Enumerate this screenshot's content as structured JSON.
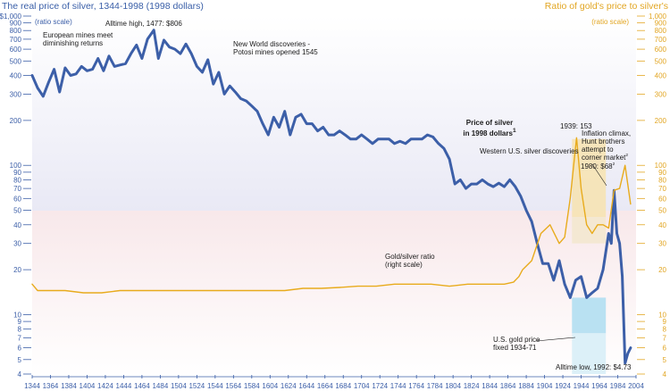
{
  "header": {
    "left_title": "The real price of silver, 1344-1998 (1998 dollars)",
    "right_title": "Ratio of gold's price to silver's"
  },
  "chart_data": {
    "type": "line",
    "x_ticks": [
      1344,
      1364,
      1384,
      1404,
      1424,
      1444,
      1464,
      1484,
      1504,
      1524,
      1544,
      1564,
      1584,
      1604,
      1624,
      1644,
      1664,
      1684,
      1704,
      1724,
      1744,
      1764,
      1784,
      1804,
      1824,
      1844,
      1864,
      1884,
      1904,
      1924,
      1944,
      1964,
      1984,
      2004
    ],
    "xlim": [
      1344,
      2004
    ],
    "left_axis": {
      "scale_note": "(ratio scale)",
      "scale": "log",
      "ylim": [
        4,
        1000
      ],
      "ticks": [
        "$1,000",
        "900",
        "800",
        "700",
        "600",
        "500",
        "400",
        "300",
        "200",
        "100",
        "90",
        "80",
        "70",
        "60",
        "50",
        "40",
        "30",
        "20",
        "10",
        "9",
        "8",
        "7",
        "6",
        "5",
        "4"
      ],
      "tick_values": [
        1000,
        900,
        800,
        700,
        600,
        500,
        400,
        300,
        200,
        100,
        90,
        80,
        70,
        60,
        50,
        40,
        30,
        20,
        10,
        9,
        8,
        7,
        6,
        5,
        4
      ]
    },
    "right_axis": {
      "scale_note": "(ratio scale)",
      "scale": "log",
      "ylim": [
        4,
        1000
      ],
      "ticks": [
        "1,000",
        "900",
        "800",
        "700",
        "600",
        "500",
        "400",
        "300",
        "200",
        "100",
        "90",
        "80",
        "70",
        "60",
        "50",
        "40",
        "30",
        "20",
        "10",
        "9",
        "8",
        "7",
        "6",
        "5",
        "4"
      ],
      "tick_values": [
        1000,
        900,
        800,
        700,
        600,
        500,
        400,
        300,
        200,
        100,
        90,
        80,
        70,
        60,
        50,
        40,
        30,
        20,
        10,
        9,
        8,
        7,
        6,
        5,
        4
      ]
    },
    "series": [
      {
        "name": "Price of silver in 1998 dollars",
        "color": "#3c5fa8",
        "x": [
          1344,
          1350,
          1356,
          1362,
          1368,
          1374,
          1380,
          1386,
          1392,
          1398,
          1404,
          1410,
          1416,
          1422,
          1428,
          1434,
          1440,
          1446,
          1452,
          1458,
          1464,
          1470,
          1477,
          1482,
          1488,
          1494,
          1500,
          1506,
          1512,
          1518,
          1524,
          1530,
          1536,
          1542,
          1548,
          1554,
          1560,
          1566,
          1572,
          1578,
          1584,
          1590,
          1596,
          1602,
          1608,
          1614,
          1620,
          1626,
          1632,
          1638,
          1644,
          1650,
          1656,
          1662,
          1668,
          1674,
          1680,
          1686,
          1692,
          1698,
          1704,
          1710,
          1716,
          1722,
          1728,
          1734,
          1740,
          1746,
          1752,
          1758,
          1764,
          1770,
          1776,
          1782,
          1788,
          1794,
          1800,
          1806,
          1812,
          1818,
          1824,
          1830,
          1836,
          1842,
          1848,
          1854,
          1860,
          1866,
          1872,
          1878,
          1884,
          1890,
          1896,
          1902,
          1908,
          1914,
          1920,
          1926,
          1932,
          1938,
          1944,
          1950,
          1956,
          1962,
          1968,
          1974,
          1977,
          1980,
          1983,
          1986,
          1989,
          1992,
          1995,
          1998
        ],
        "values": [
          400,
          330,
          290,
          360,
          440,
          310,
          450,
          400,
          410,
          460,
          430,
          440,
          520,
          430,
          540,
          460,
          470,
          480,
          560,
          640,
          520,
          700,
          806,
          520,
          690,
          620,
          600,
          560,
          650,
          560,
          460,
          420,
          510,
          350,
          420,
          300,
          340,
          310,
          280,
          270,
          250,
          230,
          190,
          160,
          210,
          180,
          230,
          160,
          210,
          220,
          190,
          190,
          170,
          180,
          160,
          160,
          170,
          160,
          150,
          150,
          160,
          150,
          140,
          150,
          150,
          150,
          140,
          145,
          140,
          150,
          150,
          150,
          160,
          155,
          140,
          130,
          110,
          75,
          80,
          70,
          75,
          75,
          80,
          75,
          72,
          76,
          72,
          80,
          72,
          62,
          50,
          42,
          30,
          22,
          22,
          17,
          23,
          16,
          13,
          17,
          18,
          13,
          14,
          15,
          20,
          35,
          30,
          68,
          35,
          30,
          18,
          4.73,
          5.5,
          6
        ]
      },
      {
        "name": "Gold/silver ratio",
        "label": "(right scale)",
        "color": "#e8ab1c",
        "x": [
          1344,
          1350,
          1360,
          1380,
          1400,
          1420,
          1440,
          1460,
          1480,
          1500,
          1520,
          1540,
          1560,
          1580,
          1600,
          1620,
          1640,
          1660,
          1680,
          1700,
          1720,
          1740,
          1760,
          1780,
          1800,
          1820,
          1840,
          1860,
          1870,
          1876,
          1880,
          1890,
          1900,
          1910,
          1920,
          1926,
          1932,
          1939,
          1944,
          1950,
          1956,
          1962,
          1968,
          1974,
          1980,
          1986,
          1992,
          1998
        ],
        "values": [
          16,
          14.5,
          14.5,
          14.5,
          14,
          14,
          14.5,
          14.5,
          14.5,
          14.5,
          14.5,
          14.5,
          14.5,
          14.5,
          14.5,
          14.5,
          15,
          15,
          15.2,
          15.5,
          15.5,
          16,
          16,
          16,
          15.5,
          16,
          16,
          16,
          16.5,
          18,
          20,
          23,
          35,
          40,
          30,
          33,
          60,
          153,
          70,
          40,
          35,
          40,
          40,
          38,
          68,
          70,
          100,
          55
        ]
      }
    ],
    "shaded_period": {
      "label": "U.S. gold price fixed 1934-71",
      "x_start": 1934,
      "x_end": 1971
    },
    "annotations": [
      {
        "text": "Alltime high, 1477: $806",
        "x": 1477,
        "y": 806,
        "color": "#3c5fa8"
      },
      {
        "text": "European mines meet diminishing returns",
        "x": 1370,
        "y": 560,
        "color": "#1a1a1a"
      },
      {
        "text": "New World discoveries - Potosi mines opened 1545",
        "x": 1545,
        "y": 440,
        "color": "#1a1a1a"
      },
      {
        "text": "Price of silver in 1998 dollars",
        "superscript": "1",
        "x": 1815,
        "y": 150,
        "color": "#3c5fa8"
      },
      {
        "text": "Western U.S. silver discoveries",
        "x": 1860,
        "y": 90,
        "color": "#1a1a1a"
      },
      {
        "text": "1939: 153",
        "x": 1939,
        "y": 153,
        "color": "#e2a623"
      },
      {
        "text": "Inflation climax, Hunt brothers attempt to corner market",
        "superscript": "2",
        "x": 1980,
        "y": 110,
        "color": "#1a1a1a"
      },
      {
        "text": "1980: $68",
        "superscript": "2",
        "x": 1980,
        "y": 68,
        "color": "#3c5fa8"
      },
      {
        "text": "Gold/silver ratio (right scale)",
        "x": 1840,
        "y": 30,
        "color": "#1a1a1a"
      },
      {
        "text": "Alltime low, 1992: $4.73",
        "x": 1992,
        "y": 4.73,
        "color": "#3c5fa8"
      }
    ]
  }
}
